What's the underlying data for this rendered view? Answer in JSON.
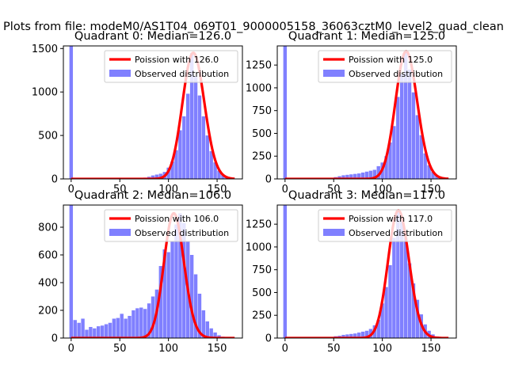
{
  "suptitle": "Plots from file: modeM0/AS1T04_069T01_9000005158_36063cztM0_level2_quad_clean",
  "colors": {
    "poisson_line": "#ff0000",
    "histogram": "#8080ff",
    "axis": "#000000"
  },
  "chart_data": [
    {
      "quadrant": 0,
      "title": "Quadrant 0: Median=126.0",
      "type": "bar",
      "median": 126.0,
      "xlim": [
        -8,
        176
      ],
      "ylim": [
        0,
        1530
      ],
      "xticks": [
        0,
        50,
        100,
        150
      ],
      "yticks": [
        0,
        500,
        1000,
        1500
      ],
      "legend": [
        "Poission with 126.0",
        "Observed distribution"
      ],
      "legend_position": "upper right",
      "bin_width": 3.6,
      "spike": {
        "x": 0,
        "count": 1530
      },
      "histogram": [
        [
          72,
          10
        ],
        [
          76,
          15
        ],
        [
          80,
          25
        ],
        [
          84,
          40
        ],
        [
          88,
          50
        ],
        [
          92,
          60
        ],
        [
          96,
          80
        ],
        [
          100,
          130
        ],
        [
          104,
          200
        ],
        [
          108,
          330
        ],
        [
          112,
          560
        ],
        [
          116,
          720
        ],
        [
          120,
          980
        ],
        [
          124,
          1450
        ],
        [
          128,
          1180
        ],
        [
          132,
          960
        ],
        [
          136,
          720
        ],
        [
          140,
          500
        ],
        [
          144,
          320
        ],
        [
          148,
          190
        ],
        [
          152,
          95
        ],
        [
          156,
          45
        ],
        [
          160,
          20
        ],
        [
          164,
          10
        ]
      ],
      "poisson_lambda": 126.0
    },
    {
      "quadrant": 1,
      "title": "Quadrant 1: Median=125.0",
      "type": "bar",
      "median": 125.0,
      "xlim": [
        -8,
        176
      ],
      "ylim": [
        0,
        1460
      ],
      "xticks": [
        0,
        50,
        100,
        150
      ],
      "yticks": [
        0,
        250,
        500,
        750,
        1000,
        1250
      ],
      "legend": [
        "Poission with 125.0",
        "Observed distribution"
      ],
      "legend_position": "upper right",
      "bin_width": 3.6,
      "spike": {
        "x": 0,
        "count": 1460
      },
      "histogram": [
        [
          52,
          20
        ],
        [
          56,
          30
        ],
        [
          60,
          40
        ],
        [
          64,
          45
        ],
        [
          68,
          50
        ],
        [
          72,
          55
        ],
        [
          76,
          60
        ],
        [
          80,
          70
        ],
        [
          84,
          80
        ],
        [
          88,
          90
        ],
        [
          92,
          100
        ],
        [
          96,
          140
        ],
        [
          100,
          180
        ],
        [
          104,
          250
        ],
        [
          108,
          400
        ],
        [
          112,
          580
        ],
        [
          116,
          900
        ],
        [
          120,
          1150
        ],
        [
          124,
          1400
        ],
        [
          128,
          1200
        ],
        [
          132,
          950
        ],
        [
          136,
          700
        ],
        [
          140,
          480
        ],
        [
          144,
          280
        ],
        [
          148,
          150
        ],
        [
          152,
          80
        ],
        [
          156,
          40
        ],
        [
          160,
          18
        ]
      ],
      "poisson_lambda": 125.0
    },
    {
      "quadrant": 2,
      "title": "Quadrant 2: Median=106.0",
      "type": "bar",
      "median": 106.0,
      "xlim": [
        -8,
        176
      ],
      "ylim": [
        0,
        960
      ],
      "xticks": [
        0,
        50,
        100,
        150
      ],
      "yticks": [
        0,
        200,
        400,
        600,
        800
      ],
      "legend": [
        "Poission with 106.0",
        "Observed distribution"
      ],
      "legend_position": "upper right",
      "bin_width": 3.6,
      "spike": {
        "x": 0,
        "count": 960
      },
      "histogram": [
        [
          4,
          130
        ],
        [
          8,
          110
        ],
        [
          12,
          140
        ],
        [
          16,
          60
        ],
        [
          20,
          80
        ],
        [
          24,
          70
        ],
        [
          28,
          85
        ],
        [
          32,
          90
        ],
        [
          36,
          100
        ],
        [
          40,
          110
        ],
        [
          44,
          140
        ],
        [
          48,
          145
        ],
        [
          52,
          175
        ],
        [
          56,
          140
        ],
        [
          60,
          160
        ],
        [
          64,
          200
        ],
        [
          68,
          215
        ],
        [
          72,
          220
        ],
        [
          76,
          210
        ],
        [
          80,
          250
        ],
        [
          84,
          300
        ],
        [
          88,
          350
        ],
        [
          92,
          520
        ],
        [
          96,
          640
        ],
        [
          100,
          620
        ],
        [
          104,
          700
        ],
        [
          108,
          820
        ],
        [
          112,
          900
        ],
        [
          116,
          830
        ],
        [
          120,
          700
        ],
        [
          124,
          600
        ],
        [
          128,
          460
        ],
        [
          132,
          320
        ],
        [
          136,
          200
        ],
        [
          140,
          120
        ],
        [
          144,
          70
        ],
        [
          148,
          40
        ],
        [
          152,
          20
        ],
        [
          156,
          10
        ]
      ],
      "poisson_lambda": 106.0
    },
    {
      "quadrant": 3,
      "title": "Quadrant 3: Median=117.0",
      "type": "bar",
      "median": 117.0,
      "xlim": [
        -8,
        176
      ],
      "ylim": [
        0,
        1460
      ],
      "xticks": [
        0,
        50,
        100,
        150
      ],
      "yticks": [
        0,
        250,
        500,
        750,
        1000,
        1250
      ],
      "legend": [
        "Poission with 117.0",
        "Observed distribution"
      ],
      "legend_position": "upper right",
      "bin_width": 3.6,
      "spike": {
        "x": 0,
        "count": 1460
      },
      "histogram": [
        [
          52,
          20
        ],
        [
          56,
          25
        ],
        [
          60,
          35
        ],
        [
          64,
          40
        ],
        [
          68,
          45
        ],
        [
          72,
          50
        ],
        [
          76,
          60
        ],
        [
          80,
          70
        ],
        [
          84,
          80
        ],
        [
          88,
          100
        ],
        [
          92,
          140
        ],
        [
          96,
          200
        ],
        [
          100,
          380
        ],
        [
          104,
          560
        ],
        [
          108,
          800
        ],
        [
          112,
          1100
        ],
        [
          116,
          1400
        ],
        [
          120,
          1280
        ],
        [
          124,
          1100
        ],
        [
          128,
          820
        ],
        [
          132,
          600
        ],
        [
          136,
          420
        ],
        [
          140,
          260
        ],
        [
          144,
          150
        ],
        [
          148,
          80
        ],
        [
          152,
          40
        ],
        [
          156,
          18
        ]
      ],
      "poisson_lambda": 117.0
    }
  ]
}
